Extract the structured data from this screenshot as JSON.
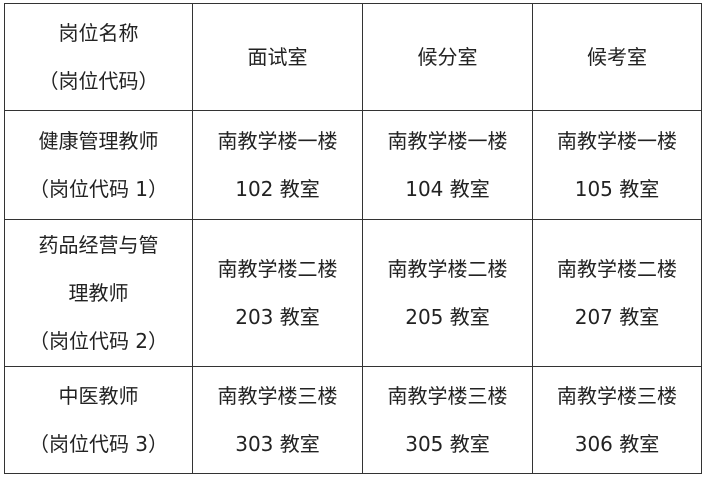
{
  "header": {
    "position": [
      "岗位名称",
      "（岗位代码）"
    ],
    "interview_room": "面试室",
    "waiting_room": "候分室",
    "candidate_room": "候考室"
  },
  "rows": [
    {
      "position": [
        "健康管理教师",
        "（岗位代码 1）"
      ],
      "interview": [
        "南教学楼一楼",
        "102 教室"
      ],
      "waiting": [
        "南教学楼一楼",
        "104 教室"
      ],
      "candidate": [
        "南教学楼一楼",
        "105 教室"
      ]
    },
    {
      "position": [
        "药品经营与管",
        "理教师",
        "（岗位代码 2）"
      ],
      "interview": [
        "南教学楼二楼",
        "203 教室"
      ],
      "waiting": [
        "南教学楼二楼",
        "205 教室"
      ],
      "candidate": [
        "南教学楼二楼",
        "207 教室"
      ]
    },
    {
      "position": [
        "中医教师",
        "（岗位代码 3）"
      ],
      "interview": [
        "南教学楼三楼",
        "303 教室"
      ],
      "waiting": [
        "南教学楼三楼",
        "305 教室"
      ],
      "candidate": [
        "南教学楼三楼",
        "306 教室"
      ]
    }
  ]
}
